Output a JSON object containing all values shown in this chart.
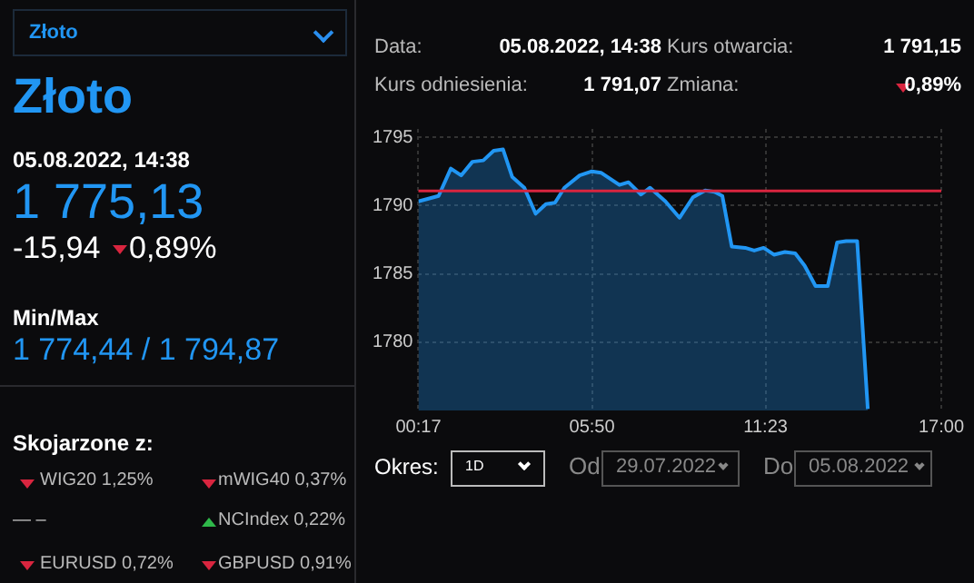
{
  "chart_data": {
    "type": "area",
    "title": "Złoto",
    "subtitle": "05.08.2022, 14:38",
    "color": "#2196f3",
    "x": [
      0.2833,
      0.93,
      1.32,
      1.65,
      2.01,
      2.36,
      2.69,
      2.99,
      3.28,
      3.67,
      4.03,
      4.36,
      4.65,
      4.95,
      5.44,
      5.83,
      6.12,
      6.71,
      7.0,
      7.4,
      7.69,
      8.18,
      8.63,
      9.06,
      9.45,
      9.75,
      10.0,
      10.3,
      10.73,
      11.02,
      11.32,
      11.65,
      12.0,
      12.33,
      12.63,
      12.98,
      13.37,
      13.67,
      13.96,
      14.31,
      14.65
    ],
    "values": [
      1790.3,
      1790.7,
      1792.7,
      1792.2,
      1793.2,
      1793.3,
      1794.0,
      1794.1,
      1792.1,
      1791.3,
      1789.4,
      1790.1,
      1790.2,
      1791.3,
      1792.2,
      1792.5,
      1792.4,
      1791.5,
      1791.7,
      1790.8,
      1791.3,
      1790.3,
      1789.1,
      1790.6,
      1791.1,
      1791.0,
      1790.7,
      1787.0,
      1786.9,
      1786.7,
      1786.9,
      1786.4,
      1786.6,
      1786.5,
      1785.6,
      1784.1,
      1784.1,
      1787.3,
      1787.4,
      1787.4,
      1775.1
    ],
    "xlim": [
      0.2833,
      17
    ],
    "xticks": [
      {
        "value": 0.2833,
        "label": "00:17"
      },
      {
        "value": 5.8333,
        "label": "05:50"
      },
      {
        "value": 11.3833,
        "label": "11:23"
      },
      {
        "value": 17,
        "label": "17:00"
      }
    ],
    "ylim": [
      1775,
      1795.6
    ],
    "yticks": [
      1780,
      1785,
      1790,
      1795
    ],
    "grid": true,
    "ref_lines": [
      {
        "axis": "y",
        "value": 1791.07,
        "color": "#d9253f"
      }
    ],
    "annotations": [
      "Złoto",
      "1 775,13",
      "-15,94",
      "0,89%",
      "Min/Max",
      "1 774,44 / 1 794,87",
      "Skojarzone z:",
      "WIG20 1,25%",
      "mWIG40 0,37%",
      "— –",
      "NCIndex 0,22%",
      "EURUSD 0,72%",
      "GBPUSD 0,91%",
      "Data:",
      "05.08.2022, 14:38",
      "Kurs otwarcia:",
      "1 791,15",
      "Kurs odniesienia:",
      "1 791,07",
      "Zmiana:",
      "0,89%",
      "Okres:",
      "1D",
      "Od",
      "29.07.2022",
      "Do",
      "05.08.2022"
    ]
  }
}
